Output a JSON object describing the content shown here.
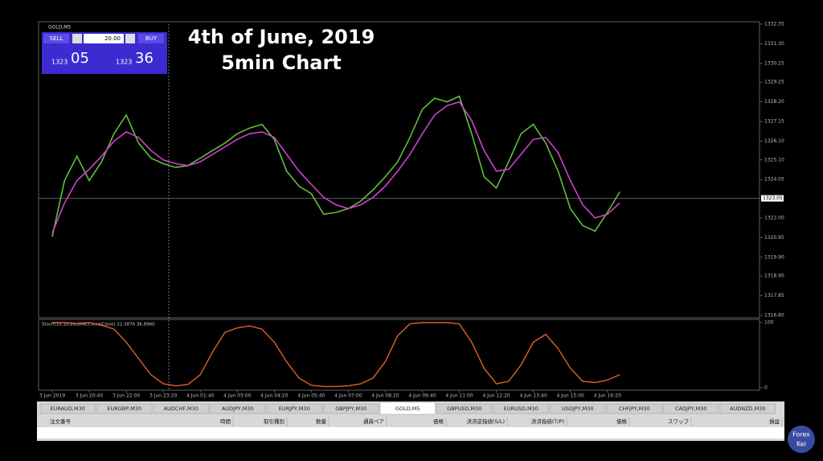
{
  "window": {
    "symbol": "GOLD,M5"
  },
  "overlay": {
    "title": "4th of June, 2019",
    "subtitle": "5min Chart"
  },
  "trade_panel": {
    "sell": "SELL",
    "lots": "20.00",
    "buy": "BUY",
    "bid_big": "1323",
    "bid_small": "05",
    "ask_big": "1323",
    "ask_small": "36"
  },
  "chart_data": [
    {
      "type": "line",
      "categories": [
        "3 Jun 2019",
        null,
        null,
        "3 Jun 20:40",
        null,
        null,
        "3 Jun 22:00",
        null,
        null,
        "3 Jun 23:20",
        null,
        null,
        "4 Jun 01:40",
        null,
        null,
        "4 Jun 03:00",
        null,
        null,
        "4 Jun 04:20",
        null,
        null,
        "4 Jun 05:40",
        null,
        null,
        "4 Jun 07:00",
        null,
        null,
        "4 Jun 08:20",
        null,
        null,
        "4 Jun 09:40",
        null,
        null,
        "4 Jun 11:00",
        null,
        null,
        "4 Jun 12:20",
        null,
        null,
        "4 Jun 13:40",
        null,
        null,
        "4 Jun 15:00",
        null,
        null,
        "4 Jun 16:20",
        null,
        null
      ],
      "series": [
        {
          "color": "#5fbf3f",
          "values": [
            1321,
            1324,
            1325.3,
            1324,
            1325,
            1326.5,
            1327.5,
            1326,
            1325.2,
            1324.9,
            1324.7,
            1324.8,
            1325.2,
            1325.6,
            1326,
            1326.5,
            1326.8,
            1327,
            1326.2,
            1324.5,
            1323.7,
            1323.3,
            1322.2,
            1322.3,
            1322.5,
            1322.9,
            1323.5,
            1324.2,
            1325,
            1326.3,
            1327.8,
            1328.4,
            1328.2,
            1328.5,
            1326.5,
            1324.2,
            1323.6,
            1325,
            1326.5,
            1327,
            1326,
            1324.5,
            1322.5,
            1321.6,
            1321.3,
            1322.3,
            1323.4,
            null
          ]
        },
        {
          "color": "#d040d0",
          "values": [
            1321.2,
            1322.8,
            1324,
            1324.6,
            1325.3,
            1326.1,
            1326.6,
            1326.3,
            1325.6,
            1325.1,
            1324.9,
            1324.8,
            1325,
            1325.4,
            1325.8,
            1326.2,
            1326.5,
            1326.6,
            1326.3,
            1325.4,
            1324.5,
            1323.8,
            1323.1,
            1322.7,
            1322.5,
            1322.7,
            1323.1,
            1323.7,
            1324.5,
            1325.4,
            1326.5,
            1327.5,
            1328,
            1328.2,
            1327.2,
            1325.6,
            1324.5,
            1324.6,
            1325.4,
            1326.2,
            1326.3,
            1325.5,
            1324,
            1322.7,
            1322,
            1322.2,
            1322.8,
            null
          ]
        }
      ],
      "ylim": [
        1316.8,
        1332.35
      ],
      "yticks": [
        {
          "value": 1316.8,
          "label": "1316.80"
        },
        {
          "value": 1317.85,
          "label": "1317.85"
        },
        {
          "value": 1318.9,
          "label": "1318.90"
        },
        {
          "value": 1319.9,
          "label": "1319.90"
        },
        {
          "value": 1320.95,
          "label": "1320.95"
        },
        {
          "value": 1322,
          "label": "1322.00"
        },
        {
          "value": 1324.05,
          "label": "1324.05"
        },
        {
          "value": 1325.1,
          "label": "1325.10"
        },
        {
          "value": 1326.1,
          "label": "1326.10"
        },
        {
          "value": 1327.15,
          "label": "1327.15"
        },
        {
          "value": 1328.2,
          "label": "1328.20"
        },
        {
          "value": 1329.25,
          "label": "1329.25"
        },
        {
          "value": 1330.25,
          "label": "1330.25"
        },
        {
          "value": 1331.3,
          "label": "1331.30"
        },
        {
          "value": 1332.35,
          "label": "1332.35"
        }
      ],
      "current_price": {
        "value": 1323.05,
        "label": "1323.05"
      }
    },
    {
      "type": "line",
      "title": "Stoch(10,10,10,SMA,Close/Close) 22.3876 36.8960",
      "series": [
        {
          "color": "#e0602a",
          "values": [
            100,
            100,
            98,
            100,
            96,
            90,
            70,
            45,
            20,
            6,
            3,
            5,
            20,
            55,
            85,
            92,
            95,
            90,
            70,
            40,
            15,
            4,
            2,
            2,
            3,
            6,
            15,
            40,
            80,
            98,
            100,
            100,
            100,
            98,
            70,
            30,
            6,
            10,
            35,
            70,
            82,
            60,
            30,
            10,
            8,
            12,
            20,
            null
          ]
        }
      ],
      "ylim": [
        0,
        100
      ],
      "yticks": [
        0,
        100
      ]
    }
  ],
  "tabs": [
    "EURAUD,M30",
    "EURGBP,M30",
    "AUDCHF,M30",
    "AUDJPY,M30",
    "EURJPY,M30",
    "GBPJPY,M30",
    "GOLD,M5",
    "GBPUSD,M30",
    "EURUSD,M30",
    "USDJPY,M30",
    "CHFJPY,M30",
    "CADJPY,M30",
    "AUDNZD,M30"
  ],
  "active_tab": 6,
  "columns": [
    "注文番号",
    "時間",
    "取引種別",
    "数量",
    "通貨ペア",
    "価格",
    "決済逆指値(S/L)",
    "決済指値(T/P)",
    "価格",
    "スワップ",
    "損益"
  ],
  "watermark": [
    "Forex",
    "Kei"
  ]
}
